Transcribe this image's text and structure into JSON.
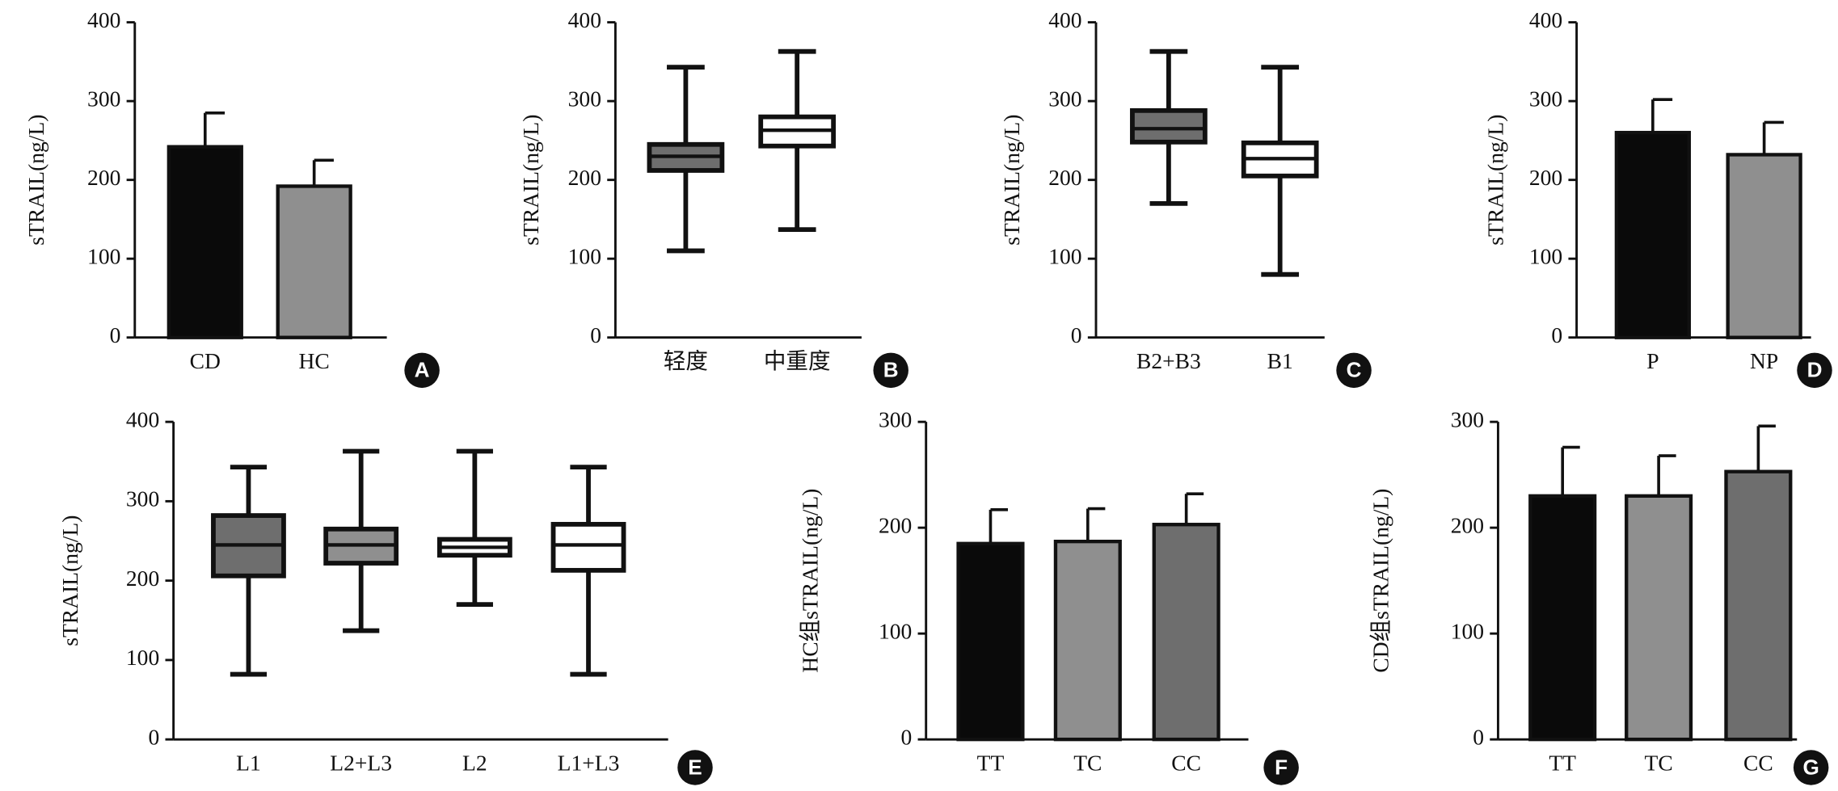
{
  "chart_data": [
    {
      "type": "bar",
      "panel": "A",
      "ylabel": "sTRAIL(ng/L)",
      "categories": [
        "CD",
        "HC"
      ],
      "values": [
        242,
        192
      ],
      "errors": [
        43,
        33
      ],
      "colors": [
        "#0a0a0a",
        "#8f8f8f"
      ],
      "ylim": [
        0,
        400
      ],
      "yticks": [
        0,
        100,
        200,
        300,
        400
      ]
    },
    {
      "type": "box",
      "panel": "B",
      "ylabel": "sTRAIL(ng/L)",
      "categories": [
        "轻度",
        "中重度"
      ],
      "min": [
        110,
        137
      ],
      "q1": [
        212,
        243
      ],
      "median": [
        230,
        263
      ],
      "q3": [
        245,
        280
      ],
      "max": [
        343,
        363
      ],
      "colors": [
        "#6e6e6e",
        "#ffffff"
      ],
      "ylim": [
        0,
        400
      ],
      "yticks": [
        0,
        100,
        200,
        300,
        400
      ]
    },
    {
      "type": "box",
      "panel": "C",
      "ylabel": "sTRAIL(ng/L)",
      "categories": [
        "B2+B3",
        "B1"
      ],
      "min": [
        170,
        80
      ],
      "q1": [
        248,
        205
      ],
      "median": [
        265,
        227
      ],
      "q3": [
        288,
        247
      ],
      "max": [
        363,
        343
      ],
      "colors": [
        "#6e6e6e",
        "#ffffff"
      ],
      "ylim": [
        0,
        400
      ],
      "yticks": [
        0,
        100,
        200,
        300,
        400
      ]
    },
    {
      "type": "bar",
      "panel": "D",
      "ylabel": "sTRAIL(ng/L)",
      "categories": [
        "P",
        "NP"
      ],
      "values": [
        260,
        232
      ],
      "errors": [
        42,
        41
      ],
      "colors": [
        "#0a0a0a",
        "#8f8f8f"
      ],
      "ylim": [
        0,
        400
      ],
      "yticks": [
        0,
        100,
        200,
        300,
        400
      ]
    },
    {
      "type": "box",
      "panel": "E",
      "ylabel": "sTRAIL(ng/L)",
      "categories": [
        "L1",
        "L2+L3",
        "L2",
        "L1+L3"
      ],
      "min": [
        82,
        137,
        170,
        82
      ],
      "q1": [
        206,
        222,
        232,
        213
      ],
      "median": [
        245,
        245,
        242,
        245
      ],
      "q3": [
        282,
        265,
        252,
        271
      ],
      "max": [
        343,
        363,
        363,
        343
      ],
      "colors": [
        "#6e6e6e",
        "#8f8f8f",
        "#ffffff",
        "#ffffff"
      ],
      "ylim": [
        0,
        400
      ],
      "yticks": [
        0,
        100,
        200,
        300,
        400
      ]
    },
    {
      "type": "bar",
      "panel": "F",
      "ylabel": "HC组sTRAIL(ng/L)",
      "categories": [
        "TT",
        "TC",
        "CC"
      ],
      "values": [
        185,
        187,
        203
      ],
      "errors": [
        32,
        31,
        29
      ],
      "colors": [
        "#0a0a0a",
        "#8f8f8f",
        "#6e6e6e"
      ],
      "ylim": [
        0,
        300
      ],
      "yticks": [
        0,
        100,
        200,
        300
      ]
    },
    {
      "type": "bar",
      "panel": "G",
      "ylabel": "CD组sTRAIL(ng/L)",
      "categories": [
        "TT",
        "TC",
        "CC"
      ],
      "values": [
        230,
        230,
        253
      ],
      "errors": [
        46,
        38,
        43
      ],
      "colors": [
        "#0a0a0a",
        "#8f8f8f",
        "#6e6e6e"
      ],
      "ylim": [
        0,
        300
      ],
      "yticks": [
        0,
        100,
        200,
        300
      ]
    }
  ]
}
